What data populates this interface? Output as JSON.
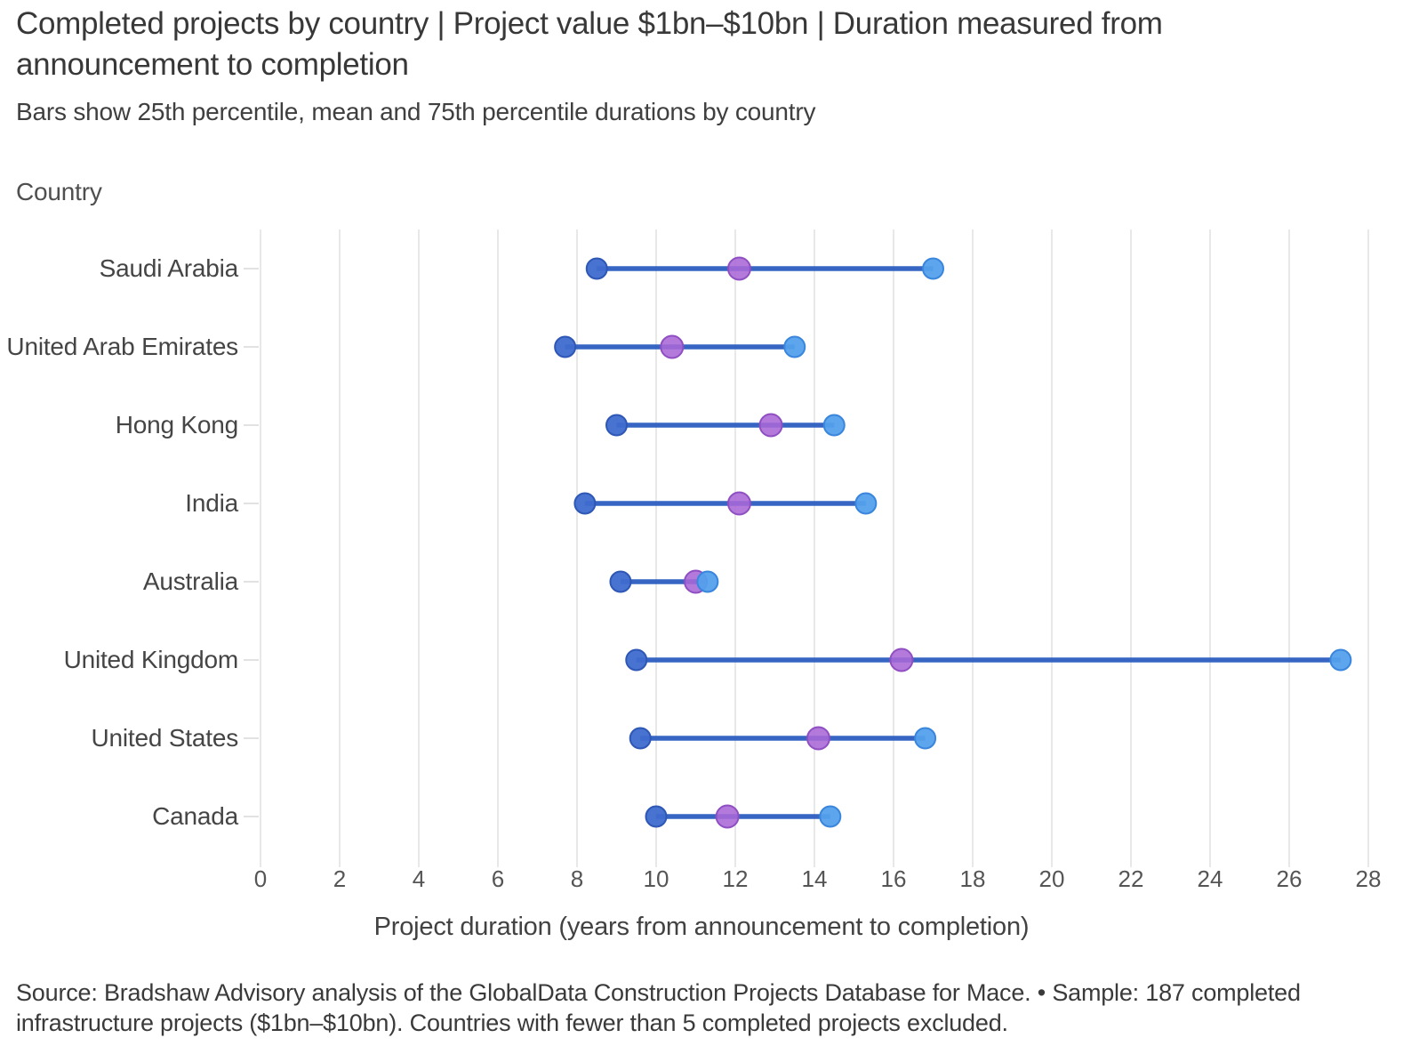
{
  "title": "Completed projects by country | Project value $1bn–$10bn | Duration measured from announcement to completion",
  "subtitle": "Bars show 25th percentile, mean and 75th percentile durations by country",
  "y_axis_title": "Country",
  "x_axis_title": "Project duration (years from announcement to completion)",
  "footer": "Source: Bradshaw Advisory analysis of the GlobalData Construction Projects Database for Mace. • Sample: 187 completed infrastructure projects ($1bn–$10bn). Countries with fewer than 5 completed projects excluded.",
  "chart_data": {
    "type": "dumbbell-range",
    "orientation": "horizontal",
    "categories": [
      "Saudi Arabia",
      "United Arab Emirates",
      "Hong Kong",
      "India",
      "Australia",
      "United Kingdom",
      "United States",
      "Canada"
    ],
    "series": [
      {
        "name": "25th percentile",
        "values": [
          8.5,
          7.7,
          9.0,
          8.2,
          9.1,
          9.5,
          9.6,
          10.0
        ],
        "color": "#3f6bce",
        "edge_color": "#2e57b6"
      },
      {
        "name": "Mean",
        "values": [
          12.1,
          10.4,
          12.9,
          12.1,
          11.0,
          16.2,
          14.1,
          11.8
        ],
        "color": "#a868d6",
        "edge_color": "#8f4fc2"
      },
      {
        "name": "75th percentile",
        "values": [
          17.0,
          13.5,
          14.5,
          15.3,
          11.3,
          27.3,
          16.8,
          14.4
        ],
        "color": "#54a0ec",
        "edge_color": "#3a86dd"
      }
    ],
    "connector_color": "#2659c0",
    "xlim": [
      0,
      28
    ],
    "x_ticks": [
      0,
      2,
      4,
      6,
      8,
      10,
      12,
      14,
      16,
      18,
      20,
      22,
      24,
      26,
      28
    ],
    "grid": true,
    "gridline_color": "#e8e8e8",
    "tick_label_color": "#555555",
    "category_label_color": "#454545",
    "legend_position": "none"
  }
}
